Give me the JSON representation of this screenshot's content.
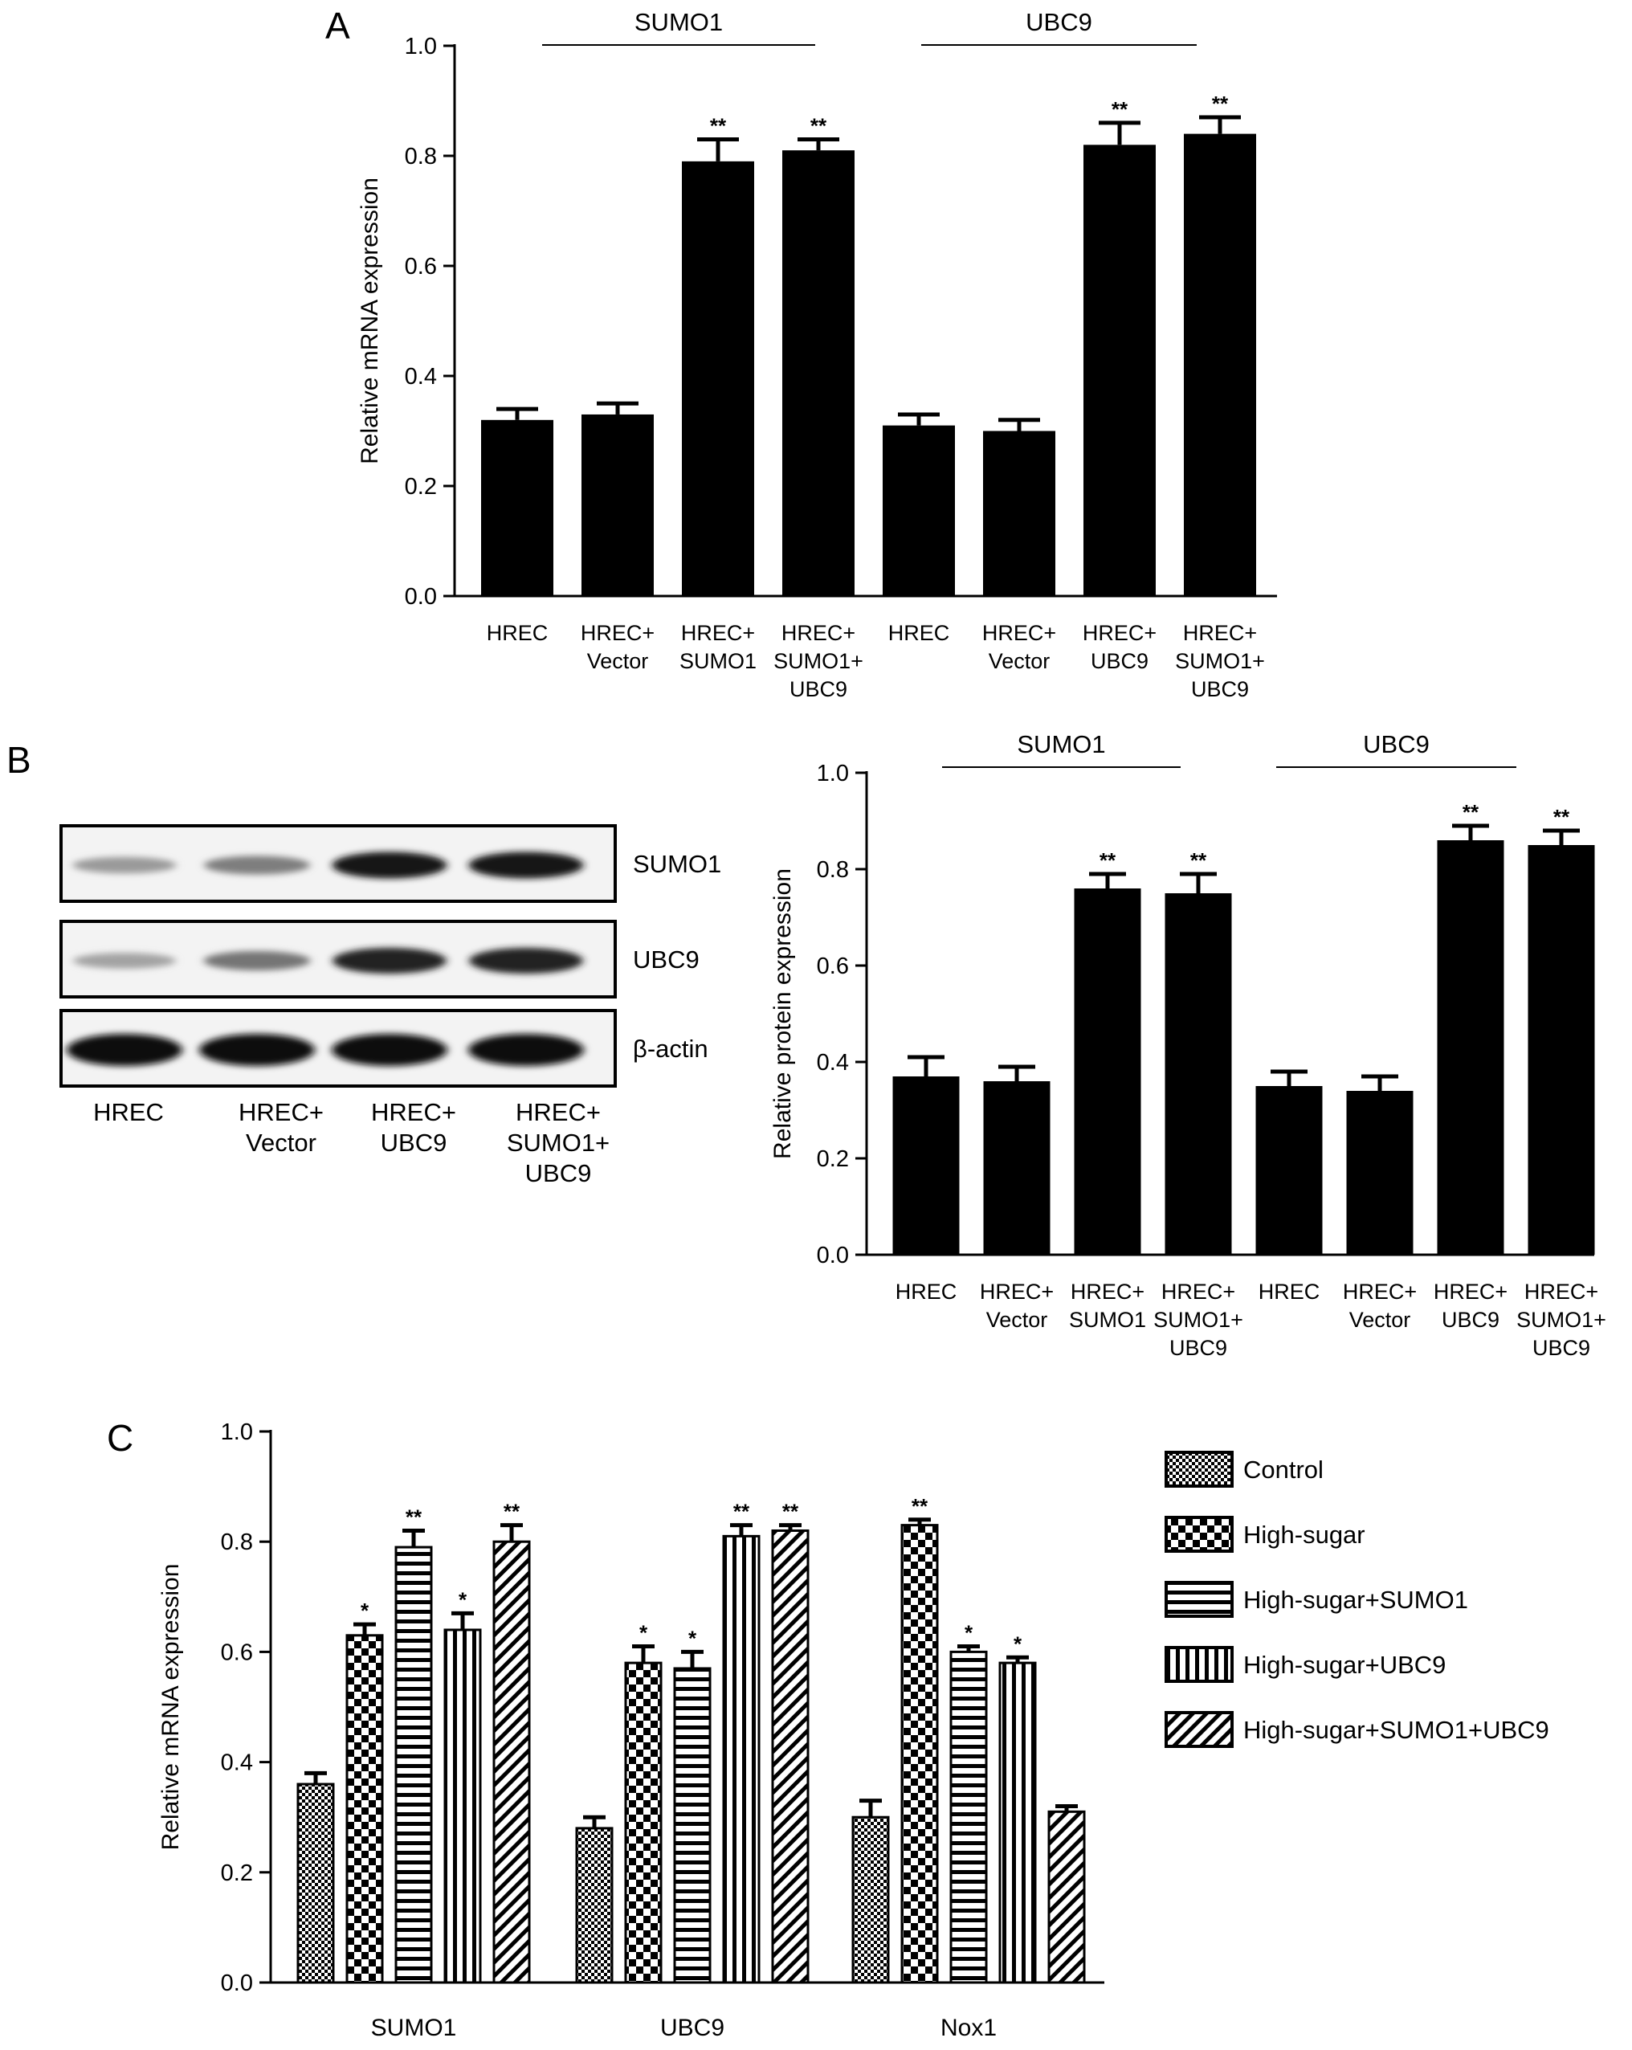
{
  "figure": {
    "panel_letters": [
      "A",
      "B",
      "C"
    ]
  },
  "chart_data": [
    {
      "panel": "A",
      "type": "bar",
      "categories": [
        "HREC",
        "HREC+\nVector",
        "HREC+\nSUMO1",
        "HREC+\nSUMO1+\nUBC9",
        "HREC",
        "HREC+\nVector",
        "HREC+\nUBC9",
        "HREC+\nSUMO1+\nUBC9"
      ],
      "values": [
        0.32,
        0.33,
        0.79,
        0.81,
        0.31,
        0.3,
        0.82,
        0.84
      ],
      "errors": [
        0.02,
        0.02,
        0.04,
        0.02,
        0.02,
        0.02,
        0.04,
        0.03
      ],
      "significance": [
        "",
        "",
        "**",
        "**",
        "",
        "",
        "**",
        "**"
      ],
      "groups": [
        {
          "label": "SUMO1",
          "from": 1,
          "to": 3
        },
        {
          "label": "UBC9",
          "from": 5,
          "to": 7
        }
      ],
      "ylabel": "Relative mRNA expression",
      "ylim": [
        0.0,
        1.0
      ],
      "yticks": [
        "0.0",
        "0.2",
        "0.4",
        "0.6",
        "0.8",
        "1.0"
      ],
      "bar_color": "#000000"
    },
    {
      "panel": "B",
      "type": "bar",
      "categories": [
        "HREC",
        "HREC+\nVector",
        "HREC+\nSUMO1",
        "HREC+\nSUMO1+\nUBC9",
        "HREC",
        "HREC+\nVector",
        "HREC+\nUBC9",
        "HREC+\nSUMO1+\nUBC9"
      ],
      "values": [
        0.37,
        0.36,
        0.76,
        0.75,
        0.35,
        0.34,
        0.86,
        0.85
      ],
      "errors": [
        0.04,
        0.03,
        0.03,
        0.04,
        0.03,
        0.03,
        0.03,
        0.03
      ],
      "significance": [
        "",
        "",
        "**",
        "**",
        "",
        "",
        "**",
        "**"
      ],
      "groups": [
        {
          "label": "SUMO1",
          "from": 1,
          "to": 3
        },
        {
          "label": "UBC9",
          "from": 5,
          "to": 7
        }
      ],
      "ylabel": "Relative protein expression",
      "ylim": [
        0.0,
        1.0
      ],
      "yticks": [
        "0.0",
        "0.2",
        "0.4",
        "0.6",
        "0.8",
        "1.0"
      ],
      "bar_color": "#000000"
    },
    {
      "panel": "C",
      "type": "bar",
      "categories": [
        "SUMO1",
        "UBC9",
        "Nox1"
      ],
      "series": [
        {
          "name": "Control",
          "pattern": "checker-fine",
          "values": [
            0.36,
            0.28,
            0.3
          ],
          "errors": [
            0.02,
            0.02,
            0.03
          ],
          "significance": [
            "",
            "",
            ""
          ]
        },
        {
          "name": "High-sugar",
          "pattern": "checker-coarse",
          "values": [
            0.63,
            0.58,
            0.83
          ],
          "errors": [
            0.02,
            0.03,
            0.01
          ],
          "significance": [
            "*",
            "*",
            "**"
          ]
        },
        {
          "name": "High-sugar+SUMO1",
          "pattern": "hstripes",
          "values": [
            0.79,
            0.57,
            0.6
          ],
          "errors": [
            0.03,
            0.03,
            0.01
          ],
          "significance": [
            "**",
            "*",
            "*"
          ]
        },
        {
          "name": "High-sugar+UBC9",
          "pattern": "vstripes",
          "values": [
            0.64,
            0.81,
            0.58
          ],
          "errors": [
            0.03,
            0.02,
            0.01
          ],
          "significance": [
            "*",
            "**",
            "*"
          ]
        },
        {
          "name": "High-sugar+SUMO1+UBC9",
          "pattern": "diagonal",
          "values": [
            0.8,
            0.82,
            0.31
          ],
          "errors": [
            0.03,
            0.01,
            0.01
          ],
          "significance": [
            "**",
            "**",
            ""
          ]
        }
      ],
      "ylabel": "Relative mRNA expression",
      "ylim": [
        0.0,
        1.0
      ],
      "yticks": [
        "0.0",
        "0.2",
        "0.4",
        "0.6",
        "0.8",
        "1.0"
      ],
      "legend_position": "right"
    }
  ],
  "western_blot": {
    "rows": [
      {
        "label": "SUMO1",
        "intensities": [
          0.25,
          0.4,
          0.95,
          0.95
        ]
      },
      {
        "label": "UBC9",
        "intensities": [
          0.2,
          0.45,
          0.9,
          0.9
        ]
      },
      {
        "label": "β-actin",
        "intensities": [
          1.0,
          1.0,
          1.0,
          1.0
        ]
      }
    ],
    "lane_labels": [
      "HREC",
      "HREC+\nVector",
      "HREC+\nUBC9",
      "HREC+\nSUMO1+\nUBC9"
    ]
  }
}
